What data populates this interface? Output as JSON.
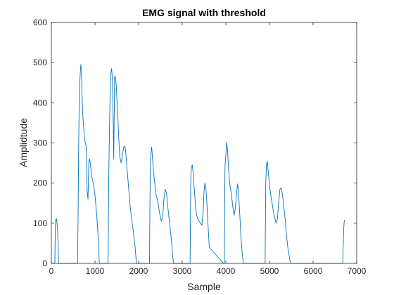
{
  "chart_data": {
    "type": "line",
    "title": "EMG signal with threshold",
    "xlabel": "Sample",
    "ylabel": "Amplidtude",
    "xlim": [
      0,
      7000
    ],
    "ylim": [
      0,
      600
    ],
    "xticks": [
      0,
      1000,
      2000,
      3000,
      4000,
      5000,
      6000,
      7000
    ],
    "yticks": [
      0,
      100,
      200,
      300,
      400,
      500,
      600
    ],
    "grid": false,
    "box": true,
    "series": [
      {
        "color": "#0072BD",
        "x": [
          0,
          80,
          90,
          100,
          115,
          130,
          145,
          165,
          180,
          190,
          200,
          600,
          612,
          625,
          640,
          660,
          675,
          690,
          700,
          720,
          740,
          760,
          780,
          800,
          820,
          840,
          860,
          880,
          900,
          930,
          960,
          1000,
          1040,
          1070,
          1100,
          1150,
          1300,
          1315,
          1330,
          1345,
          1360,
          1380,
          1400,
          1415,
          1430,
          1450,
          1470,
          1490,
          1510,
          1530,
          1550,
          1570,
          1600,
          1630,
          1660,
          1690,
          1710,
          1740,
          1770,
          1800,
          1840,
          1880,
          1920,
          1950,
          2250,
          2265,
          2280,
          2300,
          2320,
          2340,
          2360,
          2380,
          2400,
          2430,
          2460,
          2490,
          2520,
          2550,
          2580,
          2610,
          2640,
          2660,
          2690,
          2720,
          2750,
          2780,
          2800,
          3180,
          3195,
          3210,
          3230,
          3250,
          3270,
          3290,
          3310,
          3330,
          3360,
          3390,
          3420,
          3450,
          3480,
          3500,
          3520,
          3540,
          3560,
          3580,
          3600,
          3620,
          3950,
          3965,
          3980,
          4000,
          4020,
          4040,
          4060,
          4080,
          4100,
          4130,
          4160,
          4190,
          4220,
          4250,
          4270,
          4290,
          4310,
          4330,
          4350,
          4370,
          4400,
          4900,
          4915,
          4930,
          4950,
          4970,
          4990,
          5010,
          5030,
          5060,
          5090,
          5120,
          5150,
          5180,
          5210,
          5240,
          5270,
          5300,
          5330,
          5360,
          5390,
          5420,
          5450,
          5480,
          5500,
          6680,
          6690,
          6700,
          6710,
          6720
        ],
        "y": [
          0,
          0,
          90,
          108,
          112,
          100,
          80,
          0,
          0,
          0,
          0,
          0,
          110,
          280,
          420,
          470,
          495,
          480,
          430,
          370,
          340,
          310,
          300,
          290,
          180,
          160,
          255,
          260,
          240,
          215,
          200,
          170,
          120,
          70,
          0,
          0,
          0,
          210,
          320,
          410,
          470,
          485,
          460,
          380,
          260,
          465,
          465,
          440,
          390,
          350,
          300,
          265,
          250,
          270,
          290,
          292,
          270,
          230,
          190,
          150,
          110,
          80,
          40,
          0,
          0,
          220,
          270,
          290,
          260,
          230,
          210,
          190,
          170,
          160,
          140,
          120,
          105,
          115,
          160,
          185,
          175,
          150,
          120,
          90,
          60,
          20,
          0,
          0,
          200,
          240,
          245,
          225,
          195,
          165,
          135,
          120,
          110,
          105,
          100,
          95,
          130,
          180,
          200,
          190,
          160,
          120,
          80,
          40,
          0,
          0,
          240,
          270,
          302,
          280,
          240,
          210,
          190,
          170,
          140,
          120,
          140,
          180,
          198,
          180,
          140,
          100,
          60,
          30,
          0,
          0,
          200,
          245,
          255,
          230,
          210,
          185,
          170,
          150,
          130,
          115,
          100,
          110,
          150,
          185,
          188,
          170,
          140,
          110,
          70,
          40,
          20,
          0,
          0,
          0,
          40,
          80,
          100,
          108
        ]
      }
    ]
  }
}
